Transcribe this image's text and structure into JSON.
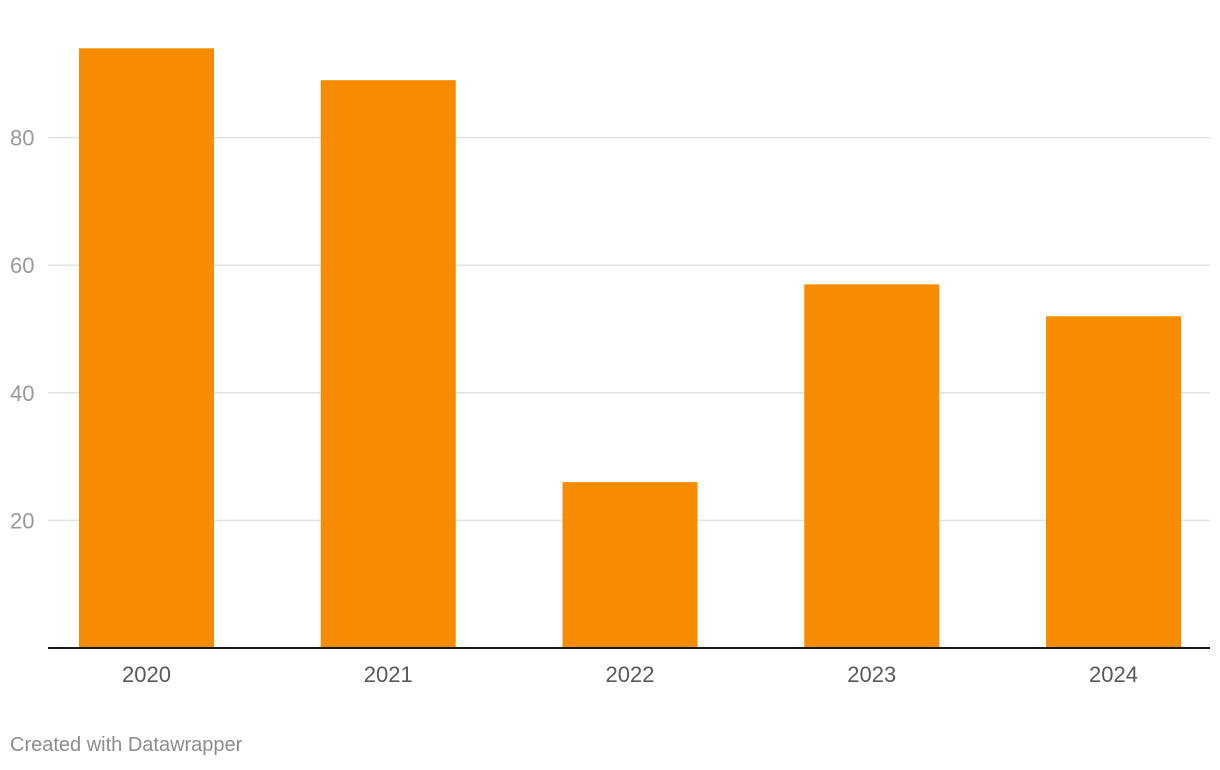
{
  "chart_data": {
    "type": "bar",
    "title": "",
    "xlabel": "",
    "ylabel": "",
    "categories": [
      "2020",
      "2021",
      "2022",
      "2023",
      "2024"
    ],
    "values": [
      94,
      89,
      26,
      57,
      52
    ],
    "ylim": [
      0,
      100
    ],
    "yticks": [
      20,
      40,
      60,
      80
    ],
    "grid": true,
    "legend": "none",
    "colors": {
      "bar": "#f78c00",
      "grid": "#e3e3e3",
      "baseline": "#1a1a1a",
      "tick_text": "#999999",
      "category_text": "#595959"
    }
  },
  "footer": {
    "credit": "Created with Datawrapper"
  }
}
